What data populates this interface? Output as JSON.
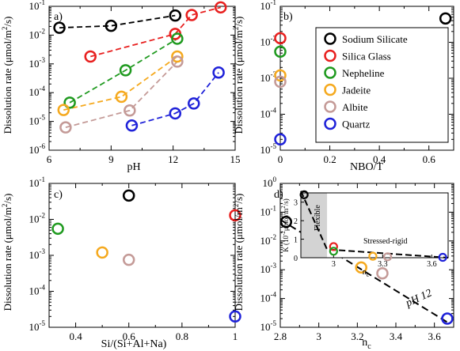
{
  "ylabel_main": "Dissolution rate (μmol/m",
  "ylabel_sup": "2",
  "ylabel_end": "/s)",
  "colors": {
    "sodium_silicate": "#000000",
    "silica_glass": "#e8201f",
    "nepheline": "#1f9a1f",
    "jadeite": "#f5a91e",
    "albite": "#c49a97",
    "quartz": "#1f22d9"
  },
  "chart_data": [
    {
      "type": "line",
      "panel": "a)",
      "xlabel": "pH",
      "xlim": [
        6,
        15
      ],
      "xticks": [
        6,
        9,
        12,
        15
      ],
      "ylim_log10": [
        -6,
        -1
      ],
      "yscale": "log",
      "series": [
        {
          "key": "sodium_silicate",
          "x": [
            6.5,
            9.0,
            12.1
          ],
          "y": [
            0.018,
            0.021,
            0.048
          ]
        },
        {
          "key": "silica_glass",
          "x": [
            8.0,
            12.1,
            12.9,
            14.3
          ],
          "y": [
            0.0018,
            0.011,
            0.05,
            0.092
          ]
        },
        {
          "key": "nepheline",
          "x": [
            7.0,
            9.7,
            12.2
          ],
          "y": [
            4.5e-05,
            0.0006,
            0.0075
          ]
        },
        {
          "key": "jadeite",
          "x": [
            6.7,
            9.5,
            12.2
          ],
          "y": [
            2.5e-05,
            7.2e-05,
            0.0018
          ]
        },
        {
          "key": "albite",
          "x": [
            6.8,
            9.9,
            12.2
          ],
          "y": [
            6.2e-06,
            2.4e-05,
            0.0012
          ]
        },
        {
          "key": "quartz",
          "x": [
            10.0,
            12.1,
            13.0,
            14.2
          ],
          "y": [
            7.2e-06,
            1.9e-05,
            4.2e-05,
            0.0005
          ]
        }
      ]
    },
    {
      "type": "scatter",
      "panel": "b)",
      "xlabel": "NBO/T",
      "xlim": [
        0,
        0.7
      ],
      "xticks": [
        0,
        0.2,
        0.4,
        0.6
      ],
      "ylim_log10": [
        -5,
        -1
      ],
      "yscale": "log",
      "legend_position": "top-right",
      "series": [
        {
          "key": "sodium_silicate",
          "name": "Sodium Silicate",
          "x": [
            0.667
          ],
          "y": [
            0.046
          ]
        },
        {
          "key": "silica_glass",
          "name": "Silica Glass",
          "x": [
            0.0
          ],
          "y": [
            0.013
          ]
        },
        {
          "key": "nepheline",
          "name": "Nepheline",
          "x": [
            0.0
          ],
          "y": [
            0.0055
          ]
        },
        {
          "key": "jadeite",
          "name": "Jadeite",
          "x": [
            0.0
          ],
          "y": [
            0.0012
          ]
        },
        {
          "key": "albite",
          "name": "Albite",
          "x": [
            0.0
          ],
          "y": [
            0.0008
          ]
        },
        {
          "key": "quartz",
          "name": "Quartz",
          "x": [
            0.0
          ],
          "y": [
            2e-05
          ]
        }
      ]
    },
    {
      "type": "scatter",
      "panel": "c)",
      "xlabel": "Si/(Si+Al+Na)",
      "xlim": [
        0.3,
        1.0
      ],
      "xticks": [
        0.4,
        0.6,
        0.8,
        1
      ],
      "ylim_log10": [
        -5,
        -1
      ],
      "yscale": "log",
      "series": [
        {
          "key": "sodium_silicate",
          "x": [
            0.6
          ],
          "y": [
            0.046
          ]
        },
        {
          "key": "silica_glass",
          "x": [
            1.0
          ],
          "y": [
            0.013
          ]
        },
        {
          "key": "nepheline",
          "x": [
            0.333
          ],
          "y": [
            0.0055
          ]
        },
        {
          "key": "jadeite",
          "x": [
            0.5
          ],
          "y": [
            0.0012
          ]
        },
        {
          "key": "albite",
          "x": [
            0.6
          ],
          "y": [
            0.00075
          ]
        },
        {
          "key": "quartz",
          "x": [
            1.0
          ],
          "y": [
            2e-05
          ]
        }
      ]
    },
    {
      "type": "scatter",
      "panel": "d)",
      "xlabel": "n",
      "xlabel_sub": "c",
      "xlim": [
        2.8,
        3.7
      ],
      "xticks": [
        2.8,
        3,
        3.2,
        3.4,
        3.6
      ],
      "ylim_log10": [
        -5,
        0
      ],
      "yscale": "log",
      "fit_label": "pH 12",
      "fit_line": {
        "x": [
          2.8,
          3.667
        ],
        "y": [
          0.055,
          1.5e-05
        ]
      },
      "series": [
        {
          "key": "sodium_silicate",
          "x": [
            2.83
          ],
          "y": [
            0.046
          ]
        },
        {
          "key": "silica_glass",
          "x": [
            3.0
          ],
          "y": [
            0.013
          ]
        },
        {
          "key": "nepheline",
          "x": [
            3.0
          ],
          "y": [
            0.0055
          ]
        },
        {
          "key": "jadeite",
          "x": [
            3.22
          ],
          "y": [
            0.0012
          ]
        },
        {
          "key": "albite",
          "x": [
            3.33
          ],
          "y": [
            0.00075
          ]
        },
        {
          "key": "quartz",
          "x": [
            3.667
          ],
          "y": [
            2e-05
          ]
        }
      ],
      "inset": {
        "ylabel": "K (10",
        "ylabel_sup": "-2",
        "ylabel_end": "μmol/m",
        "ylabel_sup2": "2",
        "ylabel_tail": "/s)",
        "xlabel": "n",
        "xlabel_sub": "c",
        "xlim": [
          2.8,
          3.7
        ],
        "xticks": [
          3,
          3.3,
          3.6
        ],
        "ylim": [
          0,
          3.5
        ],
        "yticks": [
          0,
          1,
          2,
          3
        ],
        "region_flexible": "Flexible",
        "region_stressed": "Stressed-rigid",
        "flexible_x_range": [
          2.8,
          2.96
        ],
        "fit_line": {
          "x": [
            2.8,
            2.96,
            3.7
          ],
          "y": [
            3.6,
            0.45,
            0
          ]
        },
        "series": [
          {
            "key": "sodium_silicate",
            "x": [
              2.82
            ],
            "y": [
              3.4
            ]
          },
          {
            "key": "silica_glass",
            "x": [
              3.0
            ],
            "y": [
              0.6
            ]
          },
          {
            "key": "nepheline",
            "x": [
              3.0
            ],
            "y": [
              0.35
            ]
          },
          {
            "key": "jadeite",
            "x": [
              3.24
            ],
            "y": [
              0.08
            ]
          },
          {
            "key": "albite",
            "x": [
              3.33
            ],
            "y": [
              0.05
            ]
          },
          {
            "key": "quartz",
            "x": [
              3.667
            ],
            "y": [
              0.02
            ]
          }
        ]
      }
    }
  ]
}
